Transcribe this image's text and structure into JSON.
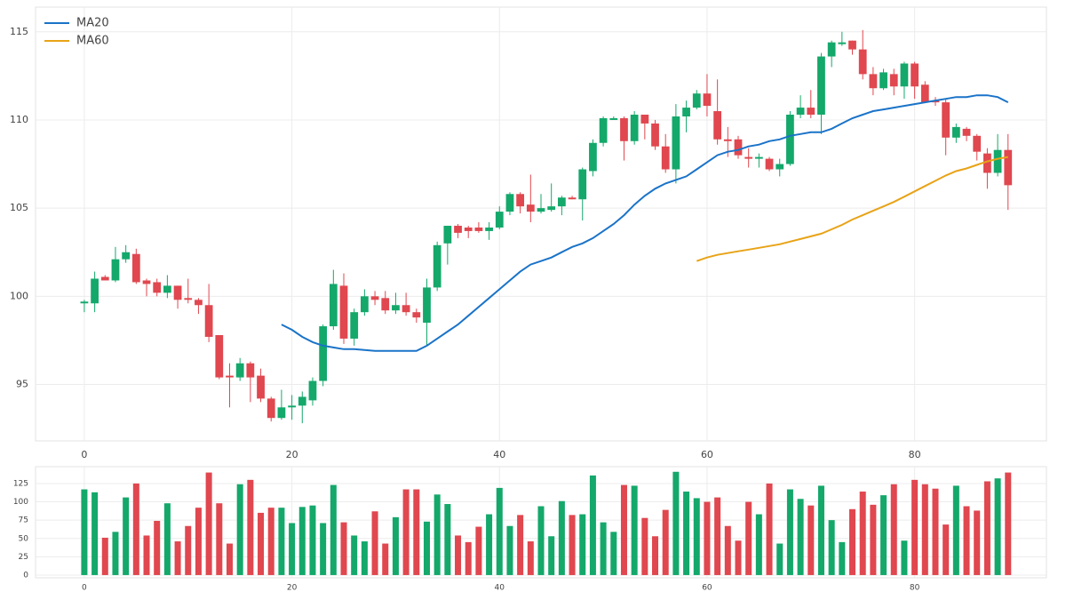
{
  "chart_data": [
    {
      "type": "candlestick",
      "x": [
        0,
        1,
        2,
        3,
        4,
        5,
        6,
        7,
        8,
        9,
        10,
        11,
        12,
        13,
        14,
        15,
        16,
        17,
        18,
        19,
        20,
        21,
        22,
        23,
        24,
        25,
        26,
        27,
        28,
        29,
        30,
        31,
        32,
        33,
        34,
        35,
        36,
        37,
        38,
        39,
        40,
        41,
        42,
        43,
        44,
        45,
        46,
        47,
        48,
        49,
        50,
        51,
        52,
        53,
        54,
        55,
        56,
        57,
        58,
        59,
        60,
        61,
        62,
        63,
        64,
        65,
        66,
        67,
        68,
        69,
        70,
        71,
        72,
        73,
        74,
        75,
        76,
        77,
        78,
        79,
        80,
        81,
        82,
        83,
        84,
        85,
        86,
        87,
        88,
        89
      ],
      "open": [
        99.6,
        99.6,
        101.1,
        100.9,
        102.1,
        102.4,
        100.9,
        100.8,
        100.2,
        100.6,
        99.9,
        99.8,
        99.5,
        97.8,
        95.5,
        95.4,
        96.2,
        95.5,
        94.2,
        93.1,
        93.7,
        93.8,
        94.1,
        95.2,
        98.3,
        100.6,
        97.6,
        99.1,
        100.0,
        99.9,
        99.2,
        99.5,
        99.1,
        98.5,
        100.5,
        103.0,
        104.0,
        103.9,
        103.9,
        103.7,
        103.9,
        104.8,
        105.8,
        105.2,
        104.8,
        104.9,
        105.1,
        105.6,
        105.5,
        107.1,
        108.7,
        110.0,
        110.1,
        108.8,
        110.3,
        109.8,
        108.5,
        107.2,
        110.2,
        110.7,
        111.5,
        110.5,
        108.9,
        108.9,
        107.9,
        107.8,
        107.8,
        107.2,
        107.5,
        110.3,
        110.7,
        110.3,
        113.6,
        114.3,
        114.5,
        114.0,
        112.6,
        111.8,
        112.6,
        111.9,
        113.2,
        112.0,
        111.1,
        111.0,
        109.0,
        109.5,
        109.1,
        108.1,
        107.0,
        108.3
      ],
      "high": [
        99.8,
        101.4,
        101.2,
        102.8,
        102.9,
        102.7,
        101.0,
        101.0,
        101.2,
        100.6,
        101.0,
        99.9,
        100.7,
        97.8,
        96.2,
        96.5,
        96.3,
        95.9,
        94.3,
        94.7,
        94.4,
        94.6,
        95.4,
        98.4,
        101.5,
        101.3,
        99.3,
        100.4,
        100.3,
        100.3,
        100.2,
        100.2,
        99.3,
        101.0,
        103.1,
        104.0,
        104.1,
        104.0,
        104.2,
        104.2,
        105.1,
        105.9,
        105.9,
        106.9,
        105.8,
        106.4,
        105.7,
        105.7,
        107.3,
        108.9,
        110.2,
        110.2,
        110.2,
        110.5,
        110.3,
        110.0,
        109.2,
        110.9,
        111.1,
        111.7,
        112.6,
        112.3,
        109.6,
        109.1,
        108.4,
        108.1,
        107.9,
        107.8,
        110.5,
        111.4,
        111.7,
        113.8,
        114.5,
        115.0,
        114.5,
        115.1,
        113.0,
        112.9,
        112.9,
        113.3,
        113.3,
        112.2,
        111.3,
        111.2,
        109.8,
        109.6,
        109.2,
        108.4,
        109.2,
        109.2
      ],
      "low": [
        99.1,
        99.1,
        100.9,
        100.8,
        101.9,
        100.7,
        100.0,
        100.0,
        99.9,
        99.3,
        99.6,
        99.0,
        97.4,
        95.3,
        93.7,
        95.2,
        94.0,
        94.0,
        92.9,
        93.0,
        93.0,
        92.8,
        93.8,
        94.9,
        98.1,
        97.3,
        97.2,
        98.9,
        99.5,
        99.0,
        99.0,
        98.9,
        98.5,
        97.2,
        100.3,
        101.8,
        103.3,
        103.3,
        103.6,
        103.2,
        103.8,
        104.6,
        104.7,
        104.2,
        104.7,
        104.8,
        104.6,
        105.5,
        104.3,
        106.8,
        108.5,
        110.0,
        107.7,
        108.6,
        108.9,
        108.3,
        107.0,
        106.4,
        109.3,
        110.6,
        110.2,
        108.6,
        107.9,
        107.8,
        107.3,
        107.3,
        107.1,
        106.8,
        107.4,
        110.1,
        110.1,
        109.2,
        113.0,
        114.2,
        113.7,
        112.3,
        111.4,
        111.7,
        111.4,
        111.2,
        111.2,
        111.0,
        110.8,
        108.0,
        108.7,
        108.8,
        107.7,
        106.1,
        106.8,
        104.9
      ],
      "close": [
        99.7,
        101.0,
        100.9,
        102.1,
        102.5,
        100.8,
        100.7,
        100.2,
        100.6,
        99.8,
        99.8,
        99.5,
        97.7,
        95.4,
        95.4,
        96.2,
        95.4,
        94.2,
        93.1,
        93.7,
        93.8,
        94.3,
        95.2,
        98.3,
        100.7,
        97.6,
        99.1,
        100.0,
        99.8,
        99.2,
        99.5,
        99.1,
        98.8,
        100.5,
        102.9,
        104.0,
        103.6,
        103.7,
        103.7,
        103.9,
        104.8,
        105.8,
        105.1,
        104.8,
        105.0,
        105.1,
        105.6,
        105.5,
        107.2,
        108.7,
        110.1,
        110.1,
        108.8,
        110.3,
        109.8,
        108.5,
        107.2,
        110.2,
        110.7,
        111.5,
        110.8,
        108.9,
        108.8,
        108.0,
        107.8,
        107.9,
        107.2,
        107.5,
        110.3,
        110.7,
        110.3,
        113.6,
        114.4,
        114.4,
        114.0,
        112.6,
        111.8,
        112.7,
        111.9,
        113.2,
        111.9,
        111.0,
        111.0,
        109.0,
        109.6,
        109.1,
        108.2,
        107.0,
        108.3,
        106.3
      ],
      "up_color": "#14a86b",
      "down_color": "#e0474f",
      "series": [
        {
          "name": "MA20",
          "color": "#1a73c8",
          "values": [
            null,
            null,
            null,
            null,
            null,
            null,
            null,
            null,
            null,
            null,
            null,
            null,
            null,
            null,
            null,
            null,
            null,
            null,
            null,
            98.4,
            98.1,
            97.7,
            97.4,
            97.2,
            97.1,
            97.0,
            97.0,
            96.95,
            96.9,
            96.9,
            96.9,
            96.9,
            96.9,
            97.2,
            97.6,
            98.0,
            98.4,
            98.9,
            99.4,
            99.9,
            100.4,
            100.9,
            101.4,
            101.8,
            102.0,
            102.2,
            102.5,
            102.8,
            103.0,
            103.3,
            103.7,
            104.1,
            104.6,
            105.2,
            105.7,
            106.1,
            106.4,
            106.6,
            106.8,
            107.2,
            107.6,
            108.0,
            108.2,
            108.3,
            108.5,
            108.6,
            108.8,
            108.9,
            109.1,
            109.2,
            109.3,
            109.3,
            109.5,
            109.8,
            110.1,
            110.3,
            110.5,
            110.6,
            110.7,
            110.8,
            110.9,
            111.0,
            111.1,
            111.2,
            111.3,
            111.3,
            111.4,
            111.4,
            111.3,
            111.0
          ]
        },
        {
          "name": "MA60",
          "color": "#e8a317",
          "values": [
            null,
            null,
            null,
            null,
            null,
            null,
            null,
            null,
            null,
            null,
            null,
            null,
            null,
            null,
            null,
            null,
            null,
            null,
            null,
            null,
            null,
            null,
            null,
            null,
            null,
            null,
            null,
            null,
            null,
            null,
            null,
            null,
            null,
            null,
            null,
            null,
            null,
            null,
            null,
            null,
            null,
            null,
            null,
            null,
            null,
            null,
            null,
            null,
            null,
            null,
            null,
            null,
            null,
            null,
            null,
            null,
            null,
            null,
            null,
            102.0,
            102.2,
            102.35,
            102.45,
            102.55,
            102.65,
            102.75,
            102.85,
            102.95,
            103.1,
            103.25,
            103.4,
            103.55,
            103.8,
            104.05,
            104.35,
            104.6,
            104.85,
            105.1,
            105.35,
            105.65,
            105.95,
            106.25,
            106.55,
            106.85,
            107.1,
            107.25,
            107.45,
            107.65,
            107.8,
            107.9
          ]
        }
      ],
      "xlim": [
        -4.7,
        92.7
      ],
      "ylim": [
        91.8,
        116.4
      ],
      "xticks": [
        0,
        20,
        40,
        60,
        80
      ],
      "yticks": [
        95,
        100,
        105,
        110,
        115
      ],
      "grid": true,
      "legend": "upper left"
    },
    {
      "type": "bar",
      "values": [
        117,
        113,
        51,
        59,
        106,
        125,
        54,
        74,
        98,
        46,
        67,
        92,
        140,
        98,
        43,
        124,
        130,
        85,
        92,
        92,
        71,
        93,
        95,
        71,
        123,
        72,
        54,
        46,
        87,
        43,
        79,
        117,
        117,
        73,
        110,
        97,
        54,
        45,
        66,
        83,
        119,
        67,
        82,
        46,
        94,
        53,
        101,
        82,
        83,
        136,
        72,
        59,
        123,
        122,
        78,
        53,
        89,
        141,
        114,
        105,
        100,
        106,
        67,
        47,
        100,
        83,
        125,
        43,
        117,
        104,
        95,
        122,
        75,
        45,
        90,
        114,
        96,
        109,
        124,
        47,
        130,
        124,
        118,
        69,
        122,
        94,
        88,
        128,
        132,
        140
      ],
      "xlim": [
        -4.7,
        92.7
      ],
      "ylim": [
        -3.7,
        148
      ],
      "xticks": [
        0,
        20,
        40,
        60,
        80
      ],
      "yticks": [
        0,
        25,
        50,
        75,
        100,
        125
      ],
      "grid": true
    }
  ]
}
